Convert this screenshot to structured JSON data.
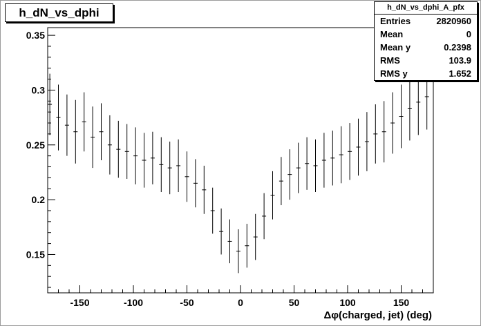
{
  "title": "h_dN_vs_dphi",
  "stats": {
    "name": "h_dN_vs_dphi_A_pfx",
    "rows": [
      {
        "label": "Entries",
        "value": "2820960"
      },
      {
        "label": "Mean",
        "value": "0"
      },
      {
        "label": "Mean y",
        "value": "0.2398"
      },
      {
        "label": "RMS",
        "value": "103.9"
      },
      {
        "label": "RMS y",
        "value": "1.652"
      }
    ]
  },
  "chart_data": {
    "type": "scatter",
    "xlabel": "Δφ(charged, jet) (deg)",
    "ylabel": "",
    "xlim": [
      -180,
      180
    ],
    "ylim": [
      0.115,
      0.357
    ],
    "xticks": [
      -150,
      -100,
      -50,
      0,
      50,
      100,
      150
    ],
    "xtick_labels": [
      "-150",
      "-100",
      "-50",
      "0",
      "50",
      "100",
      "150"
    ],
    "yticks": [
      0.15,
      0.2,
      0.25,
      0.3,
      0.35
    ],
    "ytick_labels": [
      "0.15",
      "0.2",
      "0.25",
      "0.3",
      "0.35"
    ],
    "points": [
      {
        "x": -178,
        "y": 0.287,
        "err": 0.028
      },
      {
        "x": -170,
        "y": 0.275,
        "err": 0.03
      },
      {
        "x": -162,
        "y": 0.268,
        "err": 0.028
      },
      {
        "x": -154,
        "y": 0.262,
        "err": 0.029
      },
      {
        "x": -146,
        "y": 0.271,
        "err": 0.027
      },
      {
        "x": -138,
        "y": 0.257,
        "err": 0.028
      },
      {
        "x": -130,
        "y": 0.262,
        "err": 0.026
      },
      {
        "x": -122,
        "y": 0.25,
        "err": 0.027
      },
      {
        "x": -114,
        "y": 0.246,
        "err": 0.026
      },
      {
        "x": -106,
        "y": 0.244,
        "err": 0.025
      },
      {
        "x": -98,
        "y": 0.24,
        "err": 0.026
      },
      {
        "x": -90,
        "y": 0.236,
        "err": 0.025
      },
      {
        "x": -82,
        "y": 0.238,
        "err": 0.024
      },
      {
        "x": -74,
        "y": 0.232,
        "err": 0.025
      },
      {
        "x": -66,
        "y": 0.229,
        "err": 0.024
      },
      {
        "x": -58,
        "y": 0.231,
        "err": 0.024
      },
      {
        "x": -50,
        "y": 0.221,
        "err": 0.023
      },
      {
        "x": -42,
        "y": 0.215,
        "err": 0.022
      },
      {
        "x": -34,
        "y": 0.209,
        "err": 0.022
      },
      {
        "x": -26,
        "y": 0.19,
        "err": 0.021
      },
      {
        "x": -18,
        "y": 0.171,
        "err": 0.021
      },
      {
        "x": -10,
        "y": 0.162,
        "err": 0.02
      },
      {
        "x": -2,
        "y": 0.153,
        "err": 0.02
      },
      {
        "x": 6,
        "y": 0.158,
        "err": 0.02
      },
      {
        "x": 14,
        "y": 0.166,
        "err": 0.021
      },
      {
        "x": 22,
        "y": 0.185,
        "err": 0.021
      },
      {
        "x": 30,
        "y": 0.204,
        "err": 0.022
      },
      {
        "x": 38,
        "y": 0.217,
        "err": 0.022
      },
      {
        "x": 46,
        "y": 0.223,
        "err": 0.023
      },
      {
        "x": 54,
        "y": 0.229,
        "err": 0.023
      },
      {
        "x": 62,
        "y": 0.233,
        "err": 0.024
      },
      {
        "x": 70,
        "y": 0.231,
        "err": 0.024
      },
      {
        "x": 78,
        "y": 0.236,
        "err": 0.025
      },
      {
        "x": 86,
        "y": 0.238,
        "err": 0.025
      },
      {
        "x": 94,
        "y": 0.241,
        "err": 0.026
      },
      {
        "x": 102,
        "y": 0.244,
        "err": 0.026
      },
      {
        "x": 110,
        "y": 0.248,
        "err": 0.026
      },
      {
        "x": 118,
        "y": 0.253,
        "err": 0.027
      },
      {
        "x": 126,
        "y": 0.26,
        "err": 0.027
      },
      {
        "x": 134,
        "y": 0.262,
        "err": 0.028
      },
      {
        "x": 142,
        "y": 0.27,
        "err": 0.028
      },
      {
        "x": 150,
        "y": 0.276,
        "err": 0.029
      },
      {
        "x": 158,
        "y": 0.283,
        "err": 0.029
      },
      {
        "x": 166,
        "y": 0.289,
        "err": 0.03
      },
      {
        "x": 174,
        "y": 0.294,
        "err": 0.03
      }
    ]
  }
}
